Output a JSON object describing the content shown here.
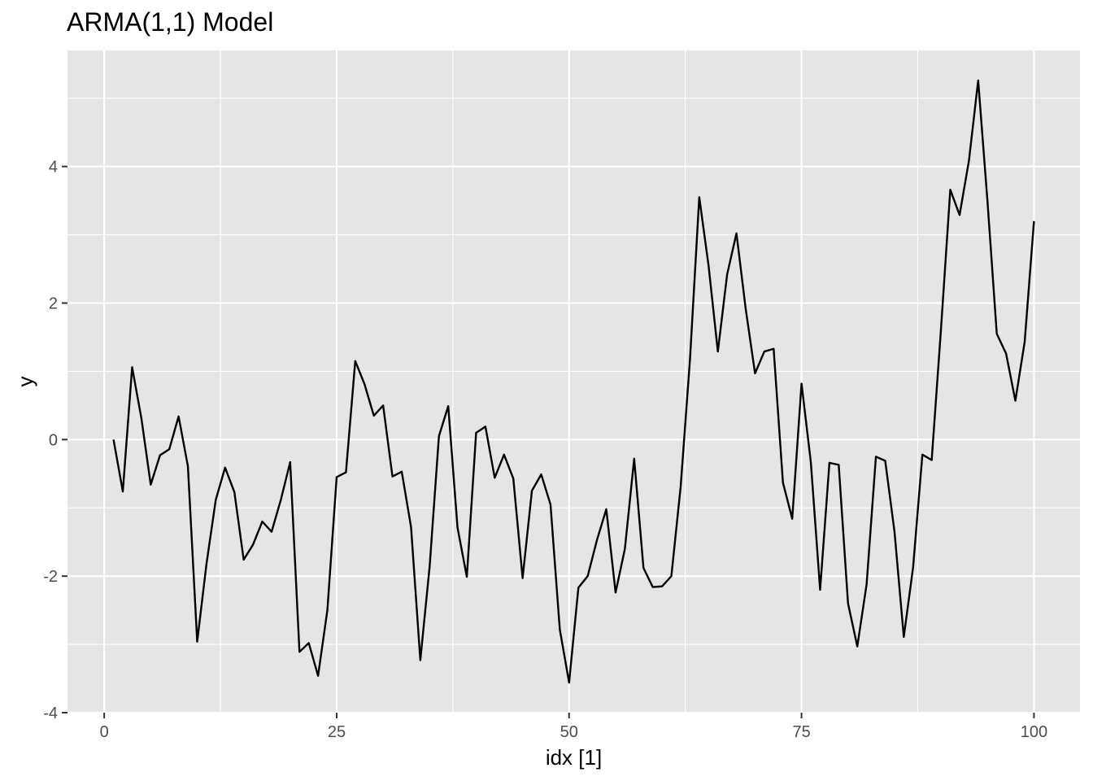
{
  "chart_data": {
    "type": "line",
    "title": "ARMA(1,1) Model",
    "xlabel": "idx [1]",
    "ylabel": "y",
    "xlim": [
      -3.95,
      104.95
    ],
    "ylim": [
      -4.0,
      5.7
    ],
    "x_ticks": [
      0,
      25,
      50,
      75,
      100
    ],
    "x_tick_labels": [
      "0",
      "25",
      "50",
      "75",
      "100"
    ],
    "y_ticks": [
      -4,
      -2,
      0,
      2,
      4
    ],
    "y_tick_labels": [
      "-4",
      "-2",
      "0",
      "2",
      "4"
    ],
    "grid": true,
    "panel_background": "#e5e5e5",
    "grid_color": "#ffffff",
    "line_color": "#000000",
    "x": [
      1,
      2,
      3,
      4,
      5,
      6,
      7,
      8,
      9,
      10,
      11,
      12,
      13,
      14,
      15,
      16,
      17,
      18,
      19,
      20,
      21,
      22,
      23,
      24,
      25,
      26,
      27,
      28,
      29,
      30,
      31,
      32,
      33,
      34,
      35,
      36,
      37,
      38,
      39,
      40,
      41,
      42,
      43,
      44,
      45,
      46,
      47,
      48,
      49,
      50,
      51,
      52,
      53,
      54,
      55,
      56,
      57,
      58,
      59,
      60,
      61,
      62,
      63,
      64,
      65,
      66,
      67,
      68,
      69,
      70,
      71,
      72,
      73,
      74,
      75,
      76,
      77,
      78,
      79,
      80,
      81,
      82,
      83,
      84,
      85,
      86,
      87,
      88,
      89,
      90,
      91,
      92,
      93,
      94,
      95,
      96,
      97,
      98,
      99,
      100
    ],
    "series": [
      {
        "values": [
          0.0,
          -0.76,
          1.06,
          0.31,
          -0.66,
          -0.23,
          -0.14,
          0.34,
          -0.39,
          -2.96,
          -1.82,
          -0.88,
          -0.41,
          -0.77,
          -1.76,
          -1.54,
          -1.2,
          -1.35,
          -0.88,
          -0.33,
          -3.11,
          -2.98,
          -3.46,
          -2.5,
          -0.55,
          -0.48,
          1.15,
          0.81,
          0.35,
          0.5,
          -0.54,
          -0.47,
          -1.28,
          -3.23,
          -1.86,
          0.05,
          0.49,
          -1.29,
          -2.01,
          0.1,
          0.19,
          -0.56,
          -0.22,
          -0.57,
          -2.03,
          -0.75,
          -0.51,
          -0.95,
          -2.78,
          -3.56,
          -2.17,
          -2.0,
          -1.47,
          -1.02,
          -2.24,
          -1.6,
          -0.28,
          -1.88,
          -2.16,
          -2.15,
          -2.0,
          -0.69,
          1.17,
          3.55,
          2.55,
          1.29,
          2.42,
          3.02,
          1.91,
          0.97,
          1.29,
          1.33,
          -0.63,
          -1.16,
          0.82,
          -0.33,
          -2.2,
          -0.34,
          -0.37,
          -2.4,
          -3.03,
          -2.12,
          -0.25,
          -0.31,
          -1.35,
          -2.89,
          -1.87,
          -0.22,
          -0.3,
          1.62,
          3.66,
          3.29,
          4.08,
          5.26,
          3.49,
          1.55,
          1.26,
          0.57,
          1.43,
          3.2
        ]
      }
    ]
  }
}
